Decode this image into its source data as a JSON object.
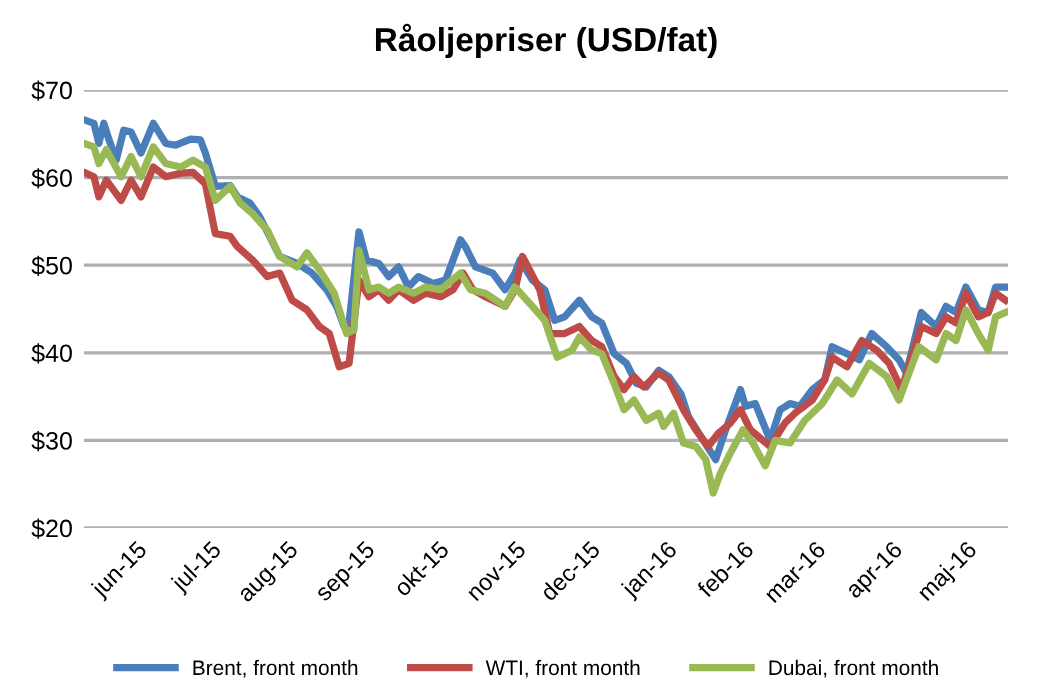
{
  "chart_data": {
    "type": "line",
    "title": "Råoljepriser (USD/fat)",
    "xlim": [
      "2015-05-11",
      "2016-05-18"
    ],
    "xticks": [
      {
        "value": "2015-06-01",
        "label": "jun-15"
      },
      {
        "value": "2015-07-01",
        "label": "jul-15"
      },
      {
        "value": "2015-08-01",
        "label": "aug-15"
      },
      {
        "value": "2015-09-01",
        "label": "sep-15"
      },
      {
        "value": "2015-10-01",
        "label": "okt-15"
      },
      {
        "value": "2015-11-01",
        "label": "nov-15"
      },
      {
        "value": "2015-12-01",
        "label": "dec-15"
      },
      {
        "value": "2016-01-01",
        "label": "jan-16"
      },
      {
        "value": "2016-02-01",
        "label": "feb-16"
      },
      {
        "value": "2016-03-01",
        "label": "mar-16"
      },
      {
        "value": "2016-04-01",
        "label": "apr-16"
      },
      {
        "value": "2016-05-01",
        "label": "maj-16"
      }
    ],
    "ylim": [
      20,
      70
    ],
    "yticks": [
      {
        "value": 20,
        "label": "$20"
      },
      {
        "value": 30,
        "label": "$30"
      },
      {
        "value": 40,
        "label": "$40"
      },
      {
        "value": 50,
        "label": "$50"
      },
      {
        "value": 60,
        "label": "$60"
      },
      {
        "value": 70,
        "label": "$70"
      }
    ],
    "grid": "y",
    "legend": "bottom",
    "marker": "none",
    "line_style": "solid",
    "series": [
      {
        "name": "Brent, front month",
        "color": "#4a7ebb",
        "x": [
          "2015-05-11",
          "2015-05-15",
          "2015-05-17",
          "2015-05-19",
          "2015-05-21",
          "2015-05-24",
          "2015-05-27",
          "2015-05-30",
          "2015-06-03",
          "2015-06-08",
          "2015-06-13",
          "2015-06-17",
          "2015-06-23",
          "2015-06-27",
          "2015-06-29",
          "2015-07-03",
          "2015-07-09",
          "2015-07-12",
          "2015-07-17",
          "2015-07-21",
          "2015-07-29",
          "2015-08-05",
          "2015-08-11",
          "2015-08-17",
          "2015-08-21",
          "2015-08-24",
          "2015-08-26",
          "2015-08-30",
          "2015-09-02",
          "2015-09-07",
          "2015-09-11",
          "2015-09-15",
          "2015-09-19",
          "2015-09-23",
          "2015-09-29",
          "2015-10-04",
          "2015-10-10",
          "2015-10-12",
          "2015-10-16",
          "2015-10-23",
          "2015-10-28",
          "2015-11-01",
          "2015-11-03",
          "2015-11-08",
          "2015-11-13",
          "2015-11-17",
          "2015-11-21",
          "2015-11-27",
          "2015-12-02",
          "2015-12-06",
          "2015-12-11",
          "2015-12-16",
          "2015-12-20",
          "2015-12-24",
          "2015-12-29",
          "2016-01-02",
          "2016-01-07",
          "2016-01-10",
          "2016-01-16",
          "2016-01-21",
          "2016-01-25",
          "2016-01-31",
          "2016-02-02",
          "2016-02-06",
          "2016-02-12",
          "2016-02-16",
          "2016-02-20",
          "2016-02-24",
          "2016-02-29",
          "2016-03-05",
          "2016-03-08",
          "2016-03-14",
          "2016-03-19",
          "2016-03-24",
          "2016-03-30",
          "2016-04-04",
          "2016-04-07",
          "2016-04-13",
          "2016-04-19",
          "2016-04-23",
          "2016-04-27",
          "2016-05-01",
          "2016-05-06",
          "2016-05-10",
          "2016-05-13",
          "2016-05-17"
        ],
        "values": [
          66.6,
          66.2,
          63.9,
          66.2,
          64.4,
          62,
          65.4,
          65.2,
          62.8,
          66.2,
          63.9,
          63.7,
          64.4,
          64.3,
          62.8,
          59,
          59.1,
          57.8,
          57.1,
          55.5,
          51,
          50.2,
          49.1,
          47.2,
          45.3,
          43,
          43.4,
          53.8,
          50.6,
          50.2,
          48.7,
          49.8,
          47.5,
          48.7,
          47.9,
          48.3,
          52.9,
          52.1,
          49.8,
          49.1,
          47.2,
          49.1,
          50.6,
          48.3,
          47.2,
          43.7,
          44.1,
          46,
          44.1,
          43.4,
          39.9,
          38.8,
          36.5,
          36.1,
          38,
          37.3,
          35.3,
          32.7,
          30,
          27.8,
          31.2,
          35.8,
          33.9,
          34.2,
          30,
          33.5,
          34.2,
          33.9,
          35.8,
          36.9,
          40.7,
          39.9,
          39.2,
          42.2,
          40.7,
          39.2,
          37.7,
          44.6,
          43,
          45.3,
          44.6,
          47.5,
          44.9,
          44.6,
          47.5,
          47.5
        ]
      },
      {
        "name": "WTI, front month",
        "color": "#be4b48",
        "x": [
          "2015-05-11",
          "2015-05-15",
          "2015-05-17",
          "2015-05-20",
          "2015-05-26",
          "2015-05-30",
          "2015-06-03",
          "2015-06-08",
          "2015-06-13",
          "2015-06-19",
          "2015-06-24",
          "2015-06-29",
          "2015-07-03",
          "2015-07-09",
          "2015-07-12",
          "2015-07-18",
          "2015-07-24",
          "2015-07-29",
          "2015-08-03",
          "2015-08-09",
          "2015-08-14",
          "2015-08-18",
          "2015-08-22",
          "2015-08-26",
          "2015-08-30",
          "2015-09-03",
          "2015-09-07",
          "2015-09-11",
          "2015-09-15",
          "2015-09-21",
          "2015-09-26",
          "2015-10-02",
          "2015-10-07",
          "2015-10-11",
          "2015-10-15",
          "2015-10-20",
          "2015-10-28",
          "2015-11-01",
          "2015-11-04",
          "2015-11-11",
          "2015-11-15",
          "2015-11-21",
          "2015-11-27",
          "2015-12-02",
          "2015-12-06",
          "2015-12-11",
          "2015-12-15",
          "2015-12-19",
          "2015-12-23",
          "2015-12-29",
          "2016-01-02",
          "2016-01-08",
          "2016-01-13",
          "2016-01-18",
          "2016-01-22",
          "2016-01-27",
          "2016-01-31",
          "2016-02-04",
          "2016-02-12",
          "2016-02-18",
          "2016-02-22",
          "2016-02-29",
          "2016-03-05",
          "2016-03-08",
          "2016-03-14",
          "2016-03-20",
          "2016-03-26",
          "2016-03-31",
          "2016-04-05",
          "2016-04-13",
          "2016-04-19",
          "2016-04-23",
          "2016-04-27",
          "2016-05-01",
          "2016-05-06",
          "2016-05-10",
          "2016-05-13",
          "2016-05-17"
        ],
        "values": [
          60.6,
          60.1,
          57.8,
          59.7,
          57.4,
          59.7,
          57.8,
          61.2,
          60.1,
          60.5,
          60.6,
          59.3,
          53.6,
          53.3,
          52.1,
          50.6,
          48.7,
          49.1,
          46,
          44.9,
          43,
          42.2,
          38.4,
          38.8,
          48.3,
          46.4,
          47.2,
          46,
          47.2,
          46,
          46.8,
          46.4,
          47.2,
          49.1,
          47.2,
          46.4,
          45.3,
          47.2,
          51,
          47.2,
          42.2,
          42.2,
          43,
          41.4,
          40.7,
          37.3,
          35.8,
          37.3,
          36.1,
          37.7,
          36.9,
          33.5,
          31.2,
          29.3,
          30.8,
          32,
          33.5,
          31.2,
          29.3,
          32,
          33.1,
          34.6,
          36.9,
          39.5,
          38.4,
          41.4,
          40.3,
          38.8,
          35.8,
          43,
          42.2,
          44.1,
          43.4,
          46.8,
          44.1,
          44.6,
          46.8,
          46
        ]
      },
      {
        "name": "Dubai, front month",
        "color": "#98b954",
        "x": [
          "2015-05-11",
          "2015-05-15",
          "2015-05-17",
          "2015-05-20",
          "2015-05-26",
          "2015-05-30",
          "2015-06-03",
          "2015-06-08",
          "2015-06-13",
          "2015-06-19",
          "2015-06-24",
          "2015-06-29",
          "2015-07-03",
          "2015-07-09",
          "2015-07-13",
          "2015-07-18",
          "2015-07-24",
          "2015-07-29",
          "2015-08-05",
          "2015-08-09",
          "2015-08-14",
          "2015-08-20",
          "2015-08-25",
          "2015-08-28",
          "2015-08-30",
          "2015-09-03",
          "2015-09-07",
          "2015-09-11",
          "2015-09-15",
          "2015-09-21",
          "2015-09-26",
          "2015-10-02",
          "2015-10-10",
          "2015-10-14",
          "2015-10-20",
          "2015-10-28",
          "2015-11-01",
          "2015-11-08",
          "2015-11-13",
          "2015-11-18",
          "2015-11-24",
          "2015-11-27",
          "2015-12-02",
          "2015-12-06",
          "2015-12-11",
          "2015-12-15",
          "2015-12-19",
          "2015-12-24",
          "2015-12-29",
          "2015-12-31",
          "2016-01-04",
          "2016-01-08",
          "2016-01-13",
          "2016-01-17",
          "2016-01-20",
          "2016-01-23",
          "2016-01-27",
          "2016-02-01",
          "2016-02-05",
          "2016-02-10",
          "2016-02-14",
          "2016-02-20",
          "2016-02-26",
          "2016-03-04",
          "2016-03-10",
          "2016-03-16",
          "2016-03-23",
          "2016-03-30",
          "2016-04-04",
          "2016-04-12",
          "2016-04-19",
          "2016-04-23",
          "2016-04-27",
          "2016-05-01",
          "2016-05-06",
          "2016-05-10",
          "2016-05-13",
          "2016-05-17"
        ],
        "values": [
          63.9,
          63.5,
          61.6,
          63.2,
          60.1,
          62.4,
          60.1,
          63.5,
          61.6,
          61.2,
          62,
          61.2,
          57.4,
          59,
          57.1,
          55.9,
          54,
          51,
          49.8,
          51.4,
          49.5,
          46.8,
          42.2,
          42.6,
          51.7,
          47.2,
          47.5,
          46.8,
          47.5,
          46.8,
          47.5,
          47.2,
          49.1,
          47.2,
          46.8,
          45.3,
          47.5,
          45.3,
          43.7,
          39.5,
          40.3,
          41.8,
          40.3,
          39.9,
          36.5,
          33.5,
          34.6,
          32.3,
          33.1,
          31.6,
          33.1,
          29.7,
          29.3,
          27.8,
          24,
          26.3,
          28.6,
          31.2,
          29.7,
          27.1,
          30,
          29.7,
          32.3,
          34.2,
          36.9,
          35.3,
          38.8,
          37.3,
          34.6,
          40.7,
          39.2,
          42.2,
          41.4,
          44.9,
          42.2,
          40.3,
          44.1,
          44.6
        ]
      }
    ]
  }
}
